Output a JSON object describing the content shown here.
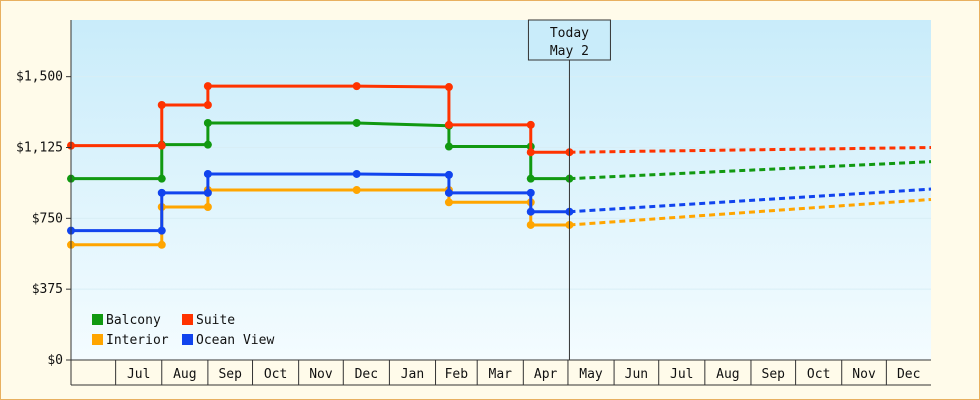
{
  "chart_data": {
    "type": "line",
    "style": "step",
    "yticks": [
      "$0",
      "$375",
      "$750",
      "$1,125",
      "$1,500"
    ],
    "ylim": [
      0,
      1800
    ],
    "xlim": [
      "2025-06-01",
      "2026-12-31"
    ],
    "months": [
      {
        "label": "Jul",
        "start": "2025-07-01"
      },
      {
        "label": "Aug",
        "start": "2025-08-01"
      },
      {
        "label": "Sep",
        "start": "2025-09-01"
      },
      {
        "label": "Oct",
        "start": "2025-10-01"
      },
      {
        "label": "Nov",
        "start": "2025-11-01"
      },
      {
        "label": "Dec",
        "start": "2025-12-01"
      },
      {
        "label": "Jan",
        "start": "2026-01-01"
      },
      {
        "label": "Feb",
        "start": "2026-02-01"
      },
      {
        "label": "Mar",
        "start": "2026-03-01"
      },
      {
        "label": "Apr",
        "start": "2026-04-01"
      },
      {
        "label": "May",
        "start": "2026-05-01"
      },
      {
        "label": "Jun",
        "start": "2026-06-01"
      },
      {
        "label": "Jul",
        "start": "2026-07-01"
      },
      {
        "label": "Aug",
        "start": "2026-08-01"
      },
      {
        "label": "Sep",
        "start": "2026-09-01"
      },
      {
        "label": "Oct",
        "start": "2026-10-01"
      },
      {
        "label": "Nov",
        "start": "2026-11-01"
      },
      {
        "label": "Dec",
        "start": "2026-12-01"
      }
    ],
    "today": {
      "label_line1": "Today",
      "label_line2": "May 2",
      "date": "2026-05-02"
    },
    "legend": {
      "position": "bottom-left"
    },
    "series": [
      {
        "name": "Balcony",
        "color": "#119911",
        "history": [
          [
            "2025-06-01",
            960
          ],
          [
            "2025-08-01",
            960
          ],
          [
            "2025-08-01",
            1140
          ],
          [
            "2025-09-01",
            1140
          ],
          [
            "2025-09-01",
            1255
          ],
          [
            "2025-12-10",
            1255
          ],
          [
            "2026-02-10",
            1240
          ],
          [
            "2026-02-10",
            1130
          ],
          [
            "2026-04-06",
            1130
          ],
          [
            "2026-04-06",
            960
          ],
          [
            "2026-05-02",
            960
          ]
        ],
        "forecast": [
          [
            "2026-05-02",
            960
          ],
          [
            "2026-12-31",
            1050
          ]
        ]
      },
      {
        "name": "Suite",
        "color": "#ff3300",
        "history": [
          [
            "2025-06-01",
            1135
          ],
          [
            "2025-08-01",
            1135
          ],
          [
            "2025-08-01",
            1350
          ],
          [
            "2025-09-01",
            1350
          ],
          [
            "2025-09-01",
            1450
          ],
          [
            "2025-12-10",
            1450
          ],
          [
            "2026-02-10",
            1445
          ],
          [
            "2026-02-10",
            1245
          ],
          [
            "2026-04-06",
            1245
          ],
          [
            "2026-04-06",
            1100
          ],
          [
            "2026-05-02",
            1100
          ]
        ],
        "forecast": [
          [
            "2026-05-02",
            1100
          ],
          [
            "2026-12-31",
            1125
          ]
        ]
      },
      {
        "name": "Interior",
        "color": "#ffa500",
        "history": [
          [
            "2025-06-01",
            610
          ],
          [
            "2025-08-01",
            610
          ],
          [
            "2025-08-01",
            810
          ],
          [
            "2025-09-01",
            810
          ],
          [
            "2025-09-01",
            900
          ],
          [
            "2025-12-10",
            900
          ],
          [
            "2026-02-10",
            900
          ],
          [
            "2026-02-10",
            835
          ],
          [
            "2026-04-06",
            835
          ],
          [
            "2026-04-06",
            715
          ],
          [
            "2026-05-02",
            715
          ]
        ],
        "forecast": [
          [
            "2026-05-02",
            715
          ],
          [
            "2026-12-31",
            850
          ]
        ]
      },
      {
        "name": "Ocean View",
        "color": "#1144ee",
        "history": [
          [
            "2025-06-01",
            685
          ],
          [
            "2025-08-01",
            685
          ],
          [
            "2025-08-01",
            885
          ],
          [
            "2025-09-01",
            885
          ],
          [
            "2025-09-01",
            985
          ],
          [
            "2025-12-10",
            985
          ],
          [
            "2026-02-10",
            980
          ],
          [
            "2026-02-10",
            885
          ],
          [
            "2026-04-06",
            885
          ],
          [
            "2026-04-06",
            785
          ],
          [
            "2026-05-02",
            785
          ]
        ],
        "forecast": [
          [
            "2026-05-02",
            785
          ],
          [
            "2026-12-31",
            905
          ]
        ]
      }
    ]
  }
}
